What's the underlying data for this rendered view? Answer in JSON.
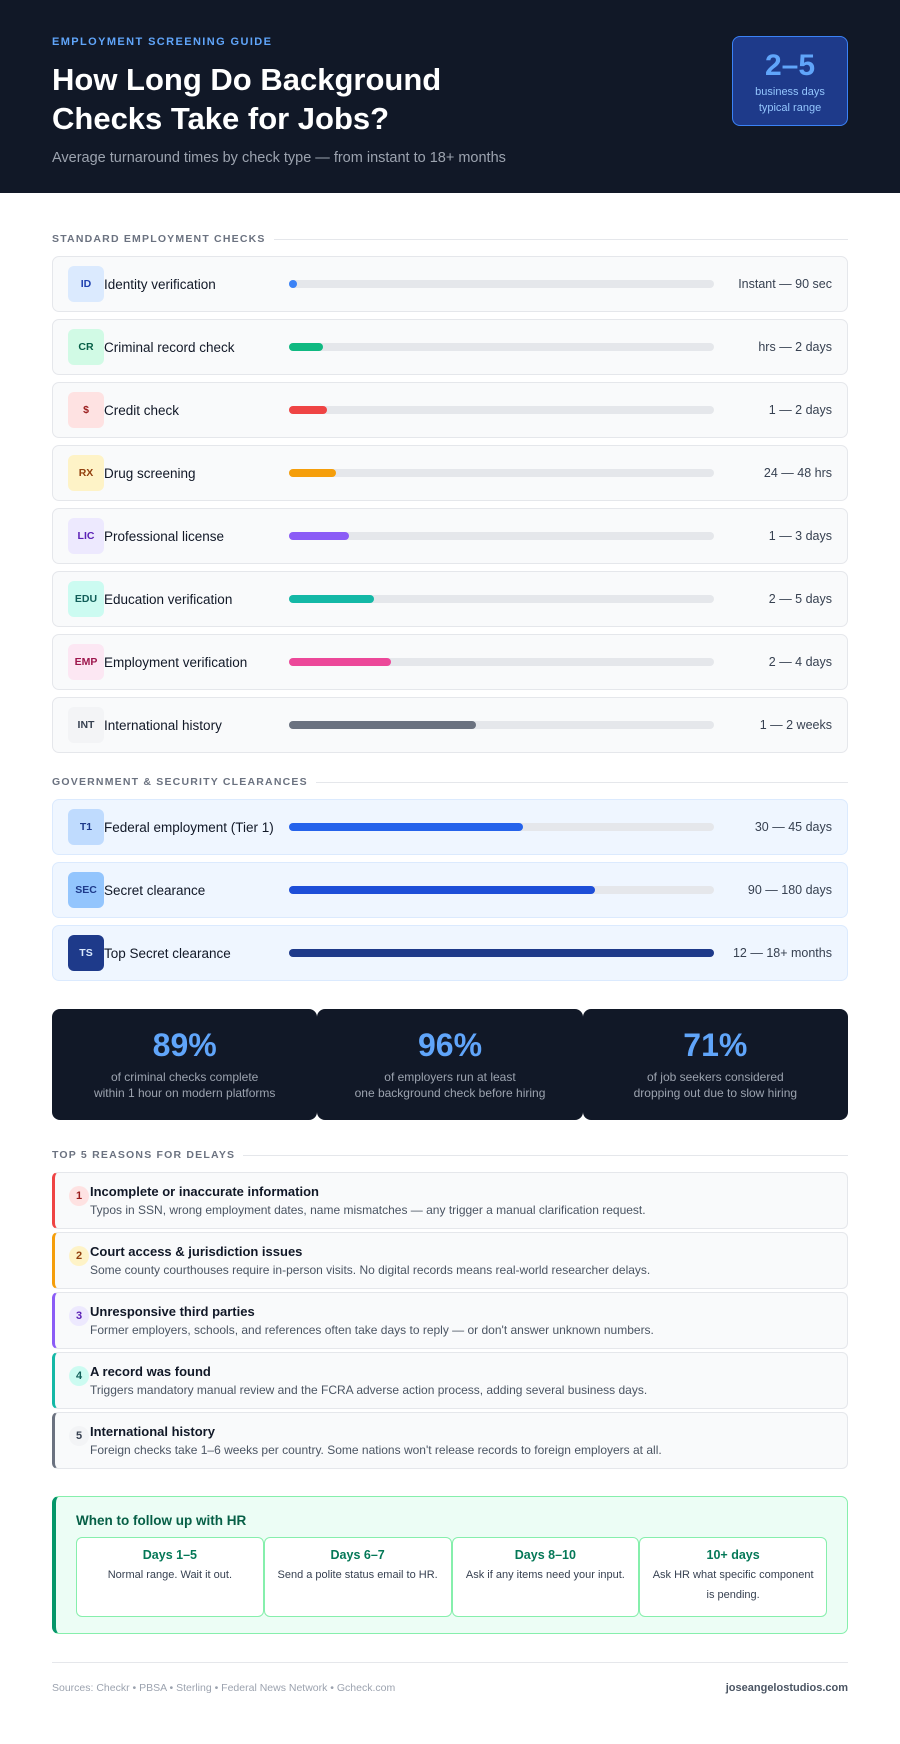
{
  "header": {
    "eyebrow": "EMPLOYMENT SCREENING GUIDE",
    "title": "How Long Do Background Checks Take for Jobs?",
    "subtitle": "Average turnaround times by check type — from instant to 18+ months",
    "badge_value": "2–5",
    "badge_label_line1": "business days",
    "badge_label_line2": "typical range"
  },
  "standard": {
    "title": "STANDARD EMPLOYMENT CHECKS",
    "items": [
      {
        "code": "ID",
        "name": "Identity verification",
        "time": "Instant — 90 sec",
        "progress": 0.02,
        "color": "#3b82f6",
        "code_bg": "#dbeafe",
        "code_fg": "#1e40af"
      },
      {
        "code": "CR",
        "name": "Criminal record check",
        "time": "hrs — 2 days",
        "progress": 0.08,
        "color": "#10b981",
        "code_bg": "#d1fae5",
        "code_fg": "#065f46"
      },
      {
        "code": "$",
        "name": "Credit check",
        "time": "1 — 2 days",
        "progress": 0.09,
        "color": "#ef4444",
        "code_bg": "#fee2e2",
        "code_fg": "#991b1b"
      },
      {
        "code": "RX",
        "name": "Drug screening",
        "time": "24 — 48 hrs",
        "progress": 0.11,
        "color": "#f59e0b",
        "code_bg": "#fef3c7",
        "code_fg": "#92400e"
      },
      {
        "code": "LIC",
        "name": "Professional license",
        "time": "1 — 3 days",
        "progress": 0.14,
        "color": "#8b5cf6",
        "code_bg": "#ede9fe",
        "code_fg": "#5b21b6"
      },
      {
        "code": "EDU",
        "name": "Education verification",
        "time": "2 — 5 days",
        "progress": 0.2,
        "color": "#14b8a6",
        "code_bg": "#ccfbf1",
        "code_fg": "#115e59"
      },
      {
        "code": "EMP",
        "name": "Employment verification",
        "time": "2 — 4 days",
        "progress": 0.24,
        "color": "#ec4899",
        "code_bg": "#fce7f3",
        "code_fg": "#9d174d"
      },
      {
        "code": "INT",
        "name": "International history",
        "time": "1 — 2 weeks",
        "progress": 0.44,
        "color": "#6b7280",
        "code_bg": "#f3f4f6",
        "code_fg": "#374151"
      }
    ]
  },
  "government": {
    "title": "GOVERNMENT & SECURITY CLEARANCES",
    "items": [
      {
        "code": "T1",
        "name": "Federal employment (Tier 1)",
        "time": "30 — 45 days",
        "progress": 0.55,
        "color": "#2563eb",
        "code_bg": "#bfdbfe",
        "code_fg": "#1e3a8a"
      },
      {
        "code": "SEC",
        "name": "Secret clearance",
        "time": "90 — 180 days",
        "progress": 0.72,
        "color": "#1d4ed8",
        "code_bg": "#93c5fd",
        "code_fg": "#1e3a8a"
      },
      {
        "code": "TS",
        "name": "Top Secret clearance",
        "time": "12 — 18+ months",
        "progress": 1.0,
        "color": "#1e3a8a",
        "code_bg": "#1e3a8a",
        "code_fg": "#dbeafe"
      }
    ]
  },
  "stats": [
    {
      "value": "89%",
      "line1": "of criminal checks complete",
      "line2": "within 1 hour on modern platforms"
    },
    {
      "value": "96%",
      "line1": "of employers run at least",
      "line2": "one background check before hiring"
    },
    {
      "value": "71%",
      "line1": "of job seekers considered",
      "line2": "dropping out due to slow hiring"
    }
  ],
  "reasons": {
    "title": "TOP 5 REASONS FOR DELAYS",
    "items": [
      {
        "num": "1",
        "title": "Incomplete or inaccurate information",
        "desc": "Typos in SSN, wrong employment dates, name mismatches — any trigger a manual clarification request.",
        "color": "#ef4444",
        "circle_bg": "#fee2e2",
        "circle_fg": "#991b1b"
      },
      {
        "num": "2",
        "title": "Court access & jurisdiction issues",
        "desc": "Some county courthouses require in-person visits. No digital records means real-world researcher delays.",
        "color": "#f59e0b",
        "circle_bg": "#fef3c7",
        "circle_fg": "#92400e"
      },
      {
        "num": "3",
        "title": "Unresponsive third parties",
        "desc": "Former employers, schools, and references often take days to reply — or don't answer unknown numbers.",
        "color": "#8b5cf6",
        "circle_bg": "#ede9fe",
        "circle_fg": "#5b21b6"
      },
      {
        "num": "4",
        "title": "A record was found",
        "desc": "Triggers mandatory manual review and the FCRA adverse action process, adding several business days.",
        "color": "#14b8a6",
        "circle_bg": "#ccfbf1",
        "circle_fg": "#115e59"
      },
      {
        "num": "5",
        "title": "International history",
        "desc": "Foreign checks take 1–6 weeks per country. Some nations won't release records to foreign employers at all.",
        "color": "#6b7280",
        "circle_bg": "#f3f4f6",
        "circle_fg": "#374151"
      }
    ]
  },
  "followup": {
    "title": "When to follow up with HR",
    "cards": [
      {
        "days": "Days 1–5",
        "text": "Normal range. Wait it out."
      },
      {
        "days": "Days 6–7",
        "text": "Send a polite status email to HR."
      },
      {
        "days": "Days 8–10",
        "text": "Ask if any items need your input."
      },
      {
        "days": "10+ days",
        "text": "Ask HR what specific component is pending."
      }
    ]
  },
  "footer": {
    "sources": "Sources: Checkr • PBSA • Sterling • Federal News Network • Gcheck.com",
    "brand": "joseangelostudios.com"
  }
}
